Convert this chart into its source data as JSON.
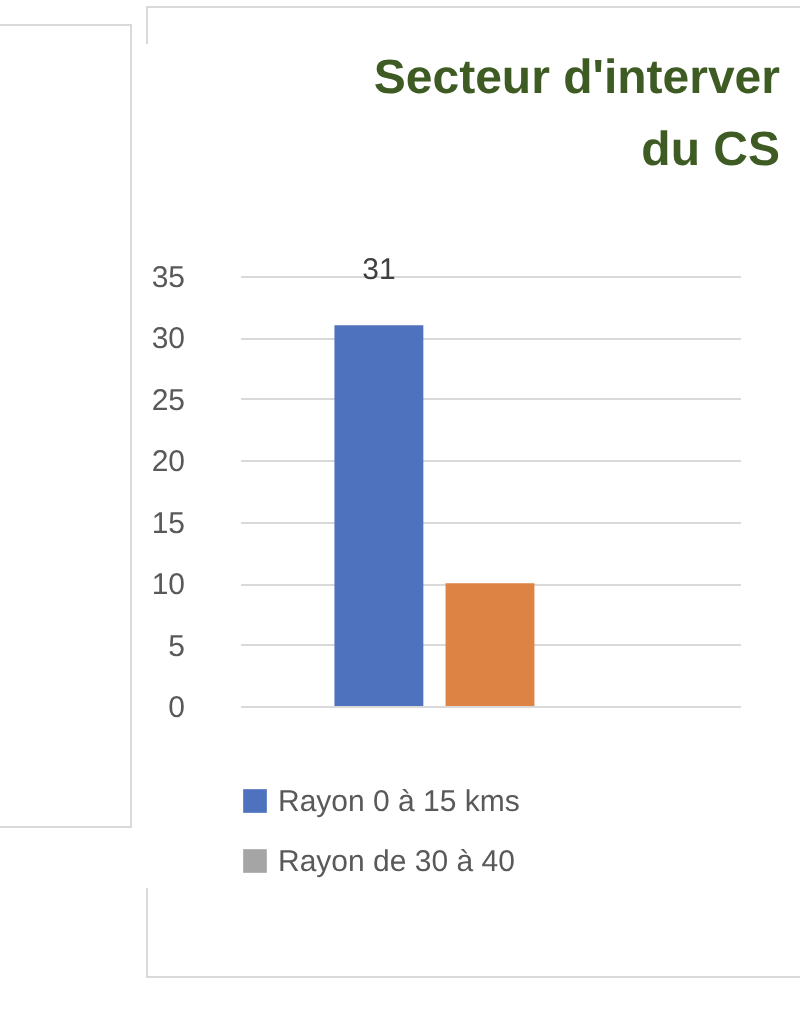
{
  "chart_data": {
    "type": "bar",
    "title": [
      "Secteur d'interver",
      "du CS"
    ],
    "categories": [
      null
    ],
    "series": [
      {
        "name": "Rayon 0 à 15 kms",
        "color": "#4f72be",
        "values": [
          31
        ],
        "value_labels": [
          "31"
        ]
      },
      {
        "color": "#dd8344",
        "values": [
          10
        ]
      },
      {
        "name": "Rayon de 30 à 40",
        "color": "#a5a5a5",
        "values": [
          null
        ]
      }
    ],
    "ylim": [
      0,
      35
    ],
    "yticks": [
      0,
      5,
      10,
      15,
      20,
      25,
      30,
      35
    ],
    "grid": "y",
    "legend": "bottom"
  }
}
